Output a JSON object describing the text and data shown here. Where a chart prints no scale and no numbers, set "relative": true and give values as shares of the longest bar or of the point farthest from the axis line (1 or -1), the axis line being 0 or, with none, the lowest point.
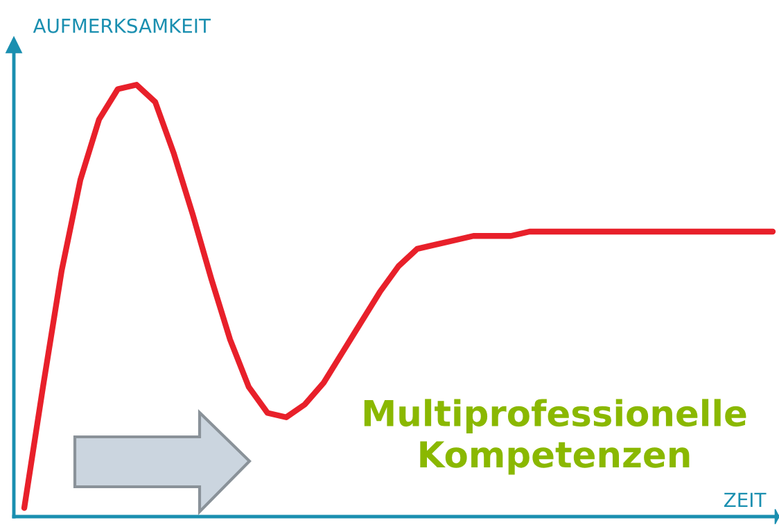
{
  "chart_data": {
    "type": "line",
    "relative": true,
    "xlabel": "ZEIT",
    "ylabel": "AUFMERKSAMKEIT",
    "categories": [
      null,
      null,
      null,
      null,
      null,
      null,
      null,
      null,
      null,
      null,
      null,
      null,
      null,
      null,
      null,
      null,
      null,
      null,
      null,
      null,
      null,
      null,
      null,
      null,
      null,
      null,
      null,
      null,
      null,
      null,
      null,
      null,
      null,
      null,
      null,
      null,
      null,
      null,
      null,
      null,
      null
    ],
    "series": [
      {
        "color": "#e8202a",
        "values": [
          0.02,
          0.3,
          0.57,
          0.78,
          0.92,
          0.99,
          1.0,
          0.96,
          0.84,
          0.7,
          0.55,
          0.41,
          0.3,
          0.24,
          0.23,
          0.26,
          0.31,
          0.38,
          0.45,
          0.52,
          0.58,
          0.62,
          0.63,
          0.64,
          0.65,
          0.65,
          0.65,
          0.66,
          0.66,
          0.66,
          0.66,
          0.66,
          0.66,
          0.66,
          0.66,
          0.66,
          0.66,
          0.66,
          0.66,
          0.66,
          0.66
        ]
      }
    ],
    "annotations": [
      "Multiprofessionelle\nKompetenzen"
    ],
    "grid": false,
    "legend": false,
    "marker": "none",
    "line_style": "solid"
  }
}
